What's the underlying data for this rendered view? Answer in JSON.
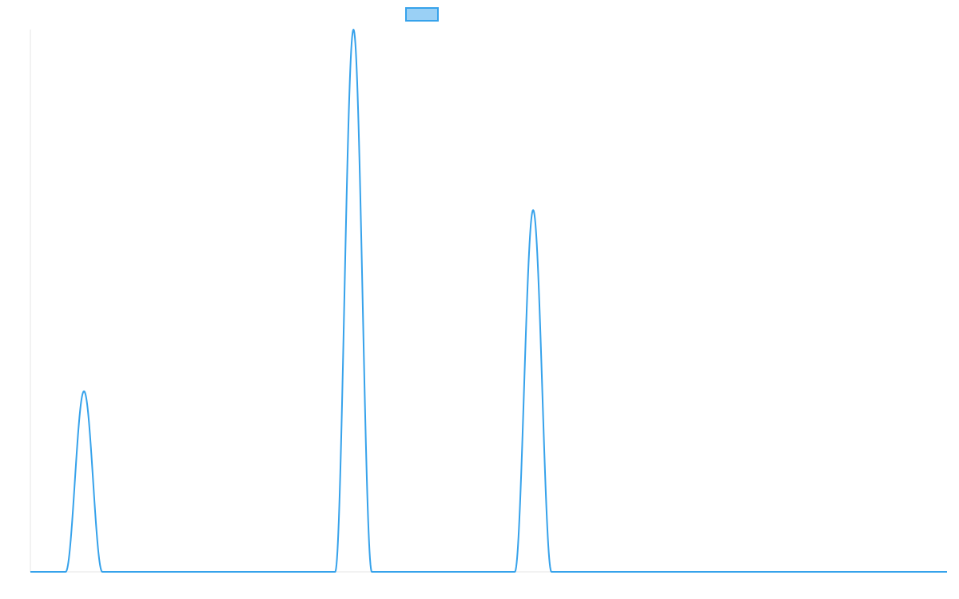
{
  "chart_data": {
    "type": "line",
    "title": "",
    "xlabel": "",
    "ylabel": "",
    "xlim": [
      0,
      1000
    ],
    "ylim": [
      0,
      1
    ],
    "grid": false,
    "legend": {
      "position": "top-center",
      "entries": [
        {
          "name": ""
        }
      ]
    },
    "series": [
      {
        "name": "",
        "color": "#36A2EB",
        "fill": "#9AD0F5",
        "peaks": [
          {
            "x": 58.5,
            "height": 0.333,
            "half_width": 20
          },
          {
            "x": 352.5,
            "height": 1.0,
            "half_width": 20
          },
          {
            "x": 548.5,
            "height": 0.667,
            "half_width": 20
          }
        ]
      }
    ]
  }
}
